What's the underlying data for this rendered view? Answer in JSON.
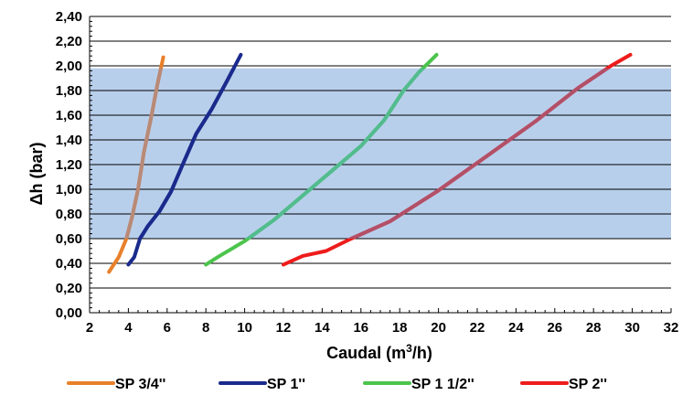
{
  "chart_data": {
    "type": "line",
    "xlabel_main": "Caudal (m",
    "xlabel_sup": "3",
    "xlabel_tail": "/h)",
    "ylabel": "Δh (bar)",
    "xlim": [
      2,
      32
    ],
    "ylim": [
      0,
      2.4
    ],
    "x_ticks": [
      "2",
      "4",
      "6",
      "8",
      "10",
      "12",
      "14",
      "16",
      "18",
      "20",
      "22",
      "24",
      "26",
      "28",
      "30",
      "32"
    ],
    "y_ticks": [
      "0,00",
      "0,20",
      "0,40",
      "0,60",
      "0,80",
      "1,00",
      "1,20",
      "1,40",
      "1,60",
      "1,80",
      "2,00",
      "2,20",
      "2,40"
    ],
    "grid": "horizontal",
    "legend_position": "bottom",
    "highlight_band": {
      "y_from": 0.6,
      "y_to": 1.98,
      "x_from": 2,
      "x_to": 32,
      "color": "#b8cfec"
    },
    "series": [
      {
        "name": "SP 3/4''",
        "color": "#e8802a",
        "overlay_color": "#b88a78",
        "points": [
          [
            3.0,
            0.33
          ],
          [
            3.5,
            0.45
          ],
          [
            3.9,
            0.6
          ],
          [
            4.2,
            0.78
          ],
          [
            4.5,
            1.0
          ],
          [
            4.8,
            1.3
          ],
          [
            5.2,
            1.6
          ],
          [
            5.5,
            1.85
          ],
          [
            5.8,
            2.07
          ]
        ]
      },
      {
        "name": "SP 1''",
        "color": "#1a2a8c",
        "overlay_color": "#1a2a8c",
        "points": [
          [
            4.0,
            0.39
          ],
          [
            4.3,
            0.45
          ],
          [
            4.6,
            0.6
          ],
          [
            5.0,
            0.7
          ],
          [
            5.6,
            0.82
          ],
          [
            6.2,
            0.98
          ],
          [
            6.8,
            1.2
          ],
          [
            7.5,
            1.45
          ],
          [
            8.3,
            1.65
          ],
          [
            9.1,
            1.88
          ],
          [
            9.8,
            2.09
          ]
        ]
      },
      {
        "name": "SP 1 1/2''",
        "color": "#4cc44c",
        "overlay_color": "#52bc8e",
        "points": [
          [
            8.0,
            0.39
          ],
          [
            8.6,
            0.45
          ],
          [
            10.0,
            0.58
          ],
          [
            11.5,
            0.75
          ],
          [
            13.0,
            0.95
          ],
          [
            14.5,
            1.15
          ],
          [
            16.0,
            1.35
          ],
          [
            17.2,
            1.56
          ],
          [
            18.2,
            1.8
          ],
          [
            19.0,
            1.95
          ],
          [
            19.9,
            2.09
          ]
        ]
      },
      {
        "name": "SP 2''",
        "color": "#ee1c1c",
        "overlay_color": "#b25068",
        "points": [
          [
            12.0,
            0.39
          ],
          [
            13.0,
            0.46
          ],
          [
            14.2,
            0.5
          ],
          [
            15.5,
            0.6
          ],
          [
            17.5,
            0.74
          ],
          [
            20.0,
            0.99
          ],
          [
            22.5,
            1.27
          ],
          [
            25.0,
            1.55
          ],
          [
            27.2,
            1.82
          ],
          [
            28.9,
            2.0
          ],
          [
            29.9,
            2.09
          ]
        ]
      }
    ]
  }
}
